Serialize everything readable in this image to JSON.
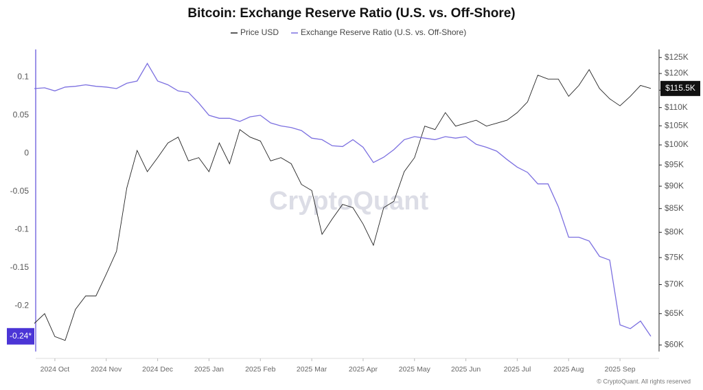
{
  "chart_data": {
    "type": "line",
    "title": "Bitcoin: Exchange Reserve Ratio (U.S. vs. Off-Shore)",
    "watermark": "CryptoQuant",
    "credit": "© CryptoQuant. All rights reserved",
    "grid": false,
    "categories": [
      null,
      null,
      "2024 Oct",
      null,
      null,
      null,
      null,
      "2024 Nov",
      null,
      null,
      null,
      null,
      "2024 Dec",
      null,
      null,
      null,
      null,
      "2025 Jan",
      null,
      null,
      null,
      null,
      "2025 Feb",
      null,
      null,
      null,
      null,
      "2025 Mar",
      null,
      null,
      null,
      null,
      "2025 Apr",
      null,
      null,
      null,
      null,
      "2025 May",
      null,
      null,
      null,
      null,
      "2025 Jun",
      null,
      null,
      null,
      null,
      "2025 Jul",
      null,
      null,
      null,
      null,
      "2025 Aug",
      null,
      null,
      null,
      null,
      "2025 Sep",
      null,
      null,
      null
    ],
    "ylim": [
      -0.26,
      0.14
    ],
    "yticks": [
      -0.2,
      -0.15,
      -0.1,
      -0.05,
      0,
      0.05,
      0.1
    ],
    "y2lim": [
      59000,
      128500
    ],
    "y2_log": true,
    "y2ticks": [
      {
        "value": 60000,
        "label": "$60K"
      },
      {
        "value": 65000,
        "label": "$65K"
      },
      {
        "value": 70000,
        "label": "$70K"
      },
      {
        "value": 75000,
        "label": "$75K"
      },
      {
        "value": 80000,
        "label": "$80K"
      },
      {
        "value": 85000,
        "label": "$85K"
      },
      {
        "value": 90000,
        "label": "$90K"
      },
      {
        "value": 95000,
        "label": "$95K"
      },
      {
        "value": 100000,
        "label": "$100K"
      },
      {
        "value": 105000,
        "label": "$105K"
      },
      {
        "value": 110000,
        "label": "$110K"
      },
      {
        "value": 115000,
        "label": "$115K"
      },
      {
        "value": 120000,
        "label": "$120K"
      },
      {
        "value": 125000,
        "label": "$125K"
      }
    ],
    "series": [
      {
        "name": "Price USD",
        "color": "#222222",
        "axis": "y2",
        "end_label": "$115.5K",
        "values": [
          63400,
          65000,
          61300,
          60700,
          65700,
          68000,
          68000,
          71900,
          76200,
          89600,
          98600,
          93400,
          96800,
          100500,
          102000,
          96000,
          96800,
          93400,
          100500,
          95300,
          104000,
          102000,
          101000,
          96000,
          96800,
          95300,
          90400,
          89000,
          79600,
          82800,
          85900,
          85200,
          81700,
          77400,
          85200,
          86600,
          93400,
          96800,
          104900,
          104000,
          108600,
          104900,
          105700,
          106500,
          104900,
          105700,
          106500,
          108600,
          111600,
          119500,
          118300,
          118300,
          113200,
          116400,
          121200,
          115500,
          112500,
          110500,
          113200,
          116400,
          115500
        ]
      },
      {
        "name": "Exchange Reserve Ratio (U.S. vs. Off-Shore)",
        "color": "#7b6fe0",
        "axis": "y",
        "end_label": "-0.24*",
        "values": [
          0.085,
          0.086,
          0.082,
          0.087,
          0.088,
          0.09,
          0.088,
          0.087,
          0.085,
          0.092,
          0.095,
          0.118,
          0.095,
          0.09,
          0.082,
          0.08,
          0.066,
          0.05,
          0.046,
          0.046,
          0.042,
          0.048,
          0.05,
          0.04,
          0.036,
          0.034,
          0.03,
          0.02,
          0.018,
          0.01,
          0.009,
          0.018,
          0.008,
          -0.012,
          -0.005,
          0.005,
          0.018,
          0.022,
          0.02,
          0.018,
          0.022,
          0.02,
          0.022,
          0.012,
          0.008,
          0.003,
          -0.008,
          -0.018,
          -0.025,
          -0.04,
          -0.04,
          -0.07,
          -0.11,
          -0.11,
          -0.115,
          -0.135,
          -0.14,
          -0.225,
          -0.23,
          -0.22,
          -0.24
        ]
      }
    ]
  }
}
